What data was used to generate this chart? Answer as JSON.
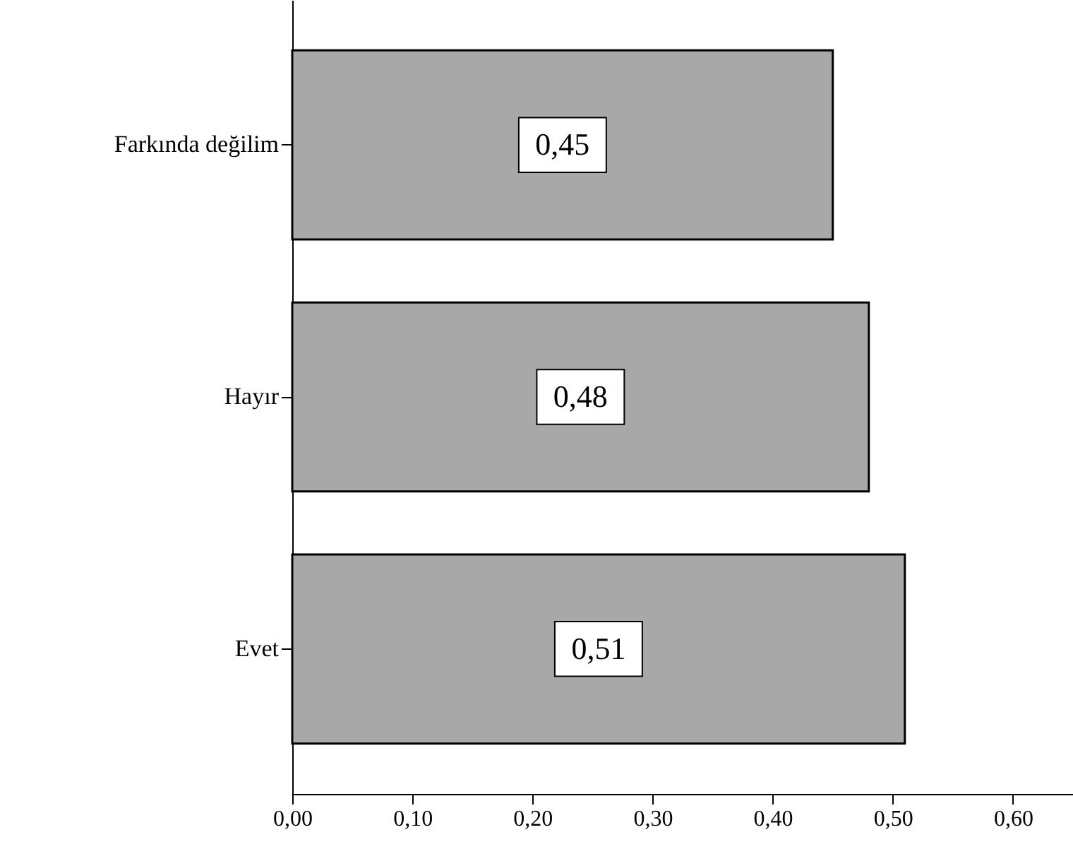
{
  "chart_data": {
    "type": "bar",
    "orientation": "horizontal",
    "categories": [
      "Farkında değilim",
      "Hayır",
      "Evet"
    ],
    "values": [
      0.45,
      0.48,
      0.51
    ],
    "value_labels": [
      "0,45",
      "0,48",
      "0,51"
    ],
    "color": "#a8a8a8",
    "xlim": [
      0,
      0.65
    ],
    "xticks": [
      {
        "value": 0,
        "label": "0,00"
      },
      {
        "value": 0.1,
        "label": "0,10"
      },
      {
        "value": 0.2,
        "label": "0,20"
      },
      {
        "value": 0.3,
        "label": "0,30"
      },
      {
        "value": 0.4,
        "label": "0,40"
      },
      {
        "value": 0.5,
        "label": "0,50"
      },
      {
        "value": 0.6,
        "label": "0,60"
      }
    ],
    "grid": false
  }
}
